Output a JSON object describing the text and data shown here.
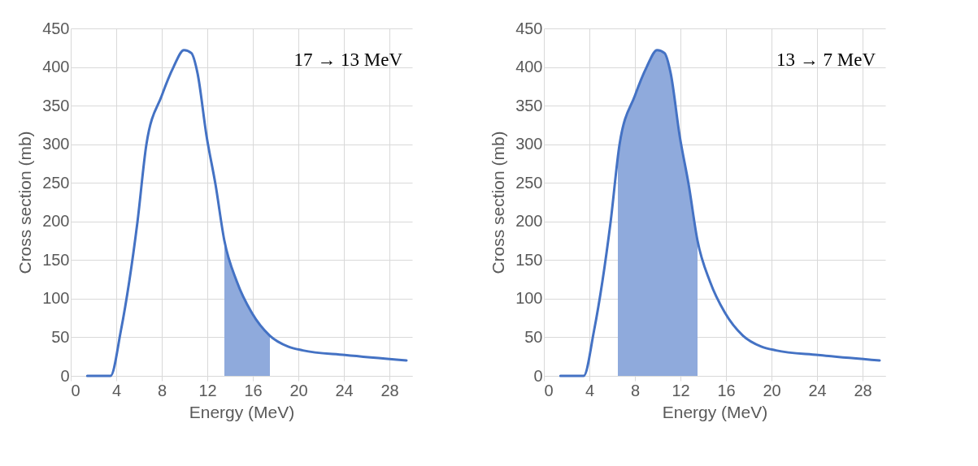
{
  "chart_data": [
    {
      "type": "line",
      "xlabel": "Energy (MeV)",
      "ylabel": "Cross section (mb)",
      "xlim": [
        0,
        30
      ],
      "xticks": [
        0,
        4,
        8,
        12,
        16,
        20,
        24,
        28
      ],
      "ylim": [
        0,
        450
      ],
      "yticks": [
        0,
        50,
        100,
        150,
        200,
        250,
        300,
        350,
        400,
        450
      ],
      "grid": true,
      "annotations": [
        "17 → 13 MeV"
      ],
      "series": [
        {
          "type": "area",
          "color": "#8faadc",
          "x": [
            13.5,
            14.6,
            15.9,
            17.5
          ],
          "values": [
            175,
            122,
            82,
            52
          ]
        },
        {
          "color": "#4472c4",
          "x": [
            1.45,
            2.56,
            3.5,
            4.4,
            5.86,
            6.65,
            8,
            9.03,
            9.95,
            10.6,
            11.14,
            11.93,
            12.73,
            13.5,
            14.6,
            15.9,
            17.5,
            19.1,
            20.4,
            24.1,
            29.5
          ],
          "values": [
            0,
            0,
            0,
            58,
            199,
            300,
            363,
            400,
            422,
            418,
            392,
            311,
            247,
            175,
            122,
            82,
            52,
            38,
            33,
            27,
            20
          ]
        }
      ]
    },
    {
      "type": "line",
      "xlabel": "Energy (MeV)",
      "ylabel": "Cross section (mb)",
      "xlim": [
        0,
        30
      ],
      "xticks": [
        0,
        4,
        8,
        12,
        16,
        20,
        24,
        28
      ],
      "ylim": [
        0,
        450
      ],
      "yticks": [
        0,
        50,
        100,
        150,
        200,
        250,
        300,
        350,
        400,
        450
      ],
      "grid": true,
      "annotations": [
        "13 → 7 MeV"
      ],
      "series": [
        {
          "type": "area",
          "color": "#8faadc",
          "x": [
            6.5,
            6.65,
            8,
            9.03,
            9.95,
            10.6,
            11.14,
            11.93,
            12.73,
            13.5
          ],
          "values": [
            280,
            300,
            363,
            400,
            422,
            418,
            392,
            311,
            247,
            175
          ]
        },
        {
          "color": "#4472c4",
          "x": [
            1.45,
            2.56,
            3.5,
            4.4,
            5.86,
            6.65,
            8,
            9.03,
            9.95,
            10.6,
            11.14,
            11.93,
            12.73,
            13.5,
            14.6,
            15.9,
            17.5,
            19.1,
            20.4,
            24.1,
            29.5
          ],
          "values": [
            0,
            0,
            0,
            58,
            199,
            300,
            363,
            400,
            422,
            418,
            392,
            311,
            247,
            175,
            122,
            82,
            52,
            38,
            33,
            27,
            20
          ]
        }
      ]
    }
  ]
}
